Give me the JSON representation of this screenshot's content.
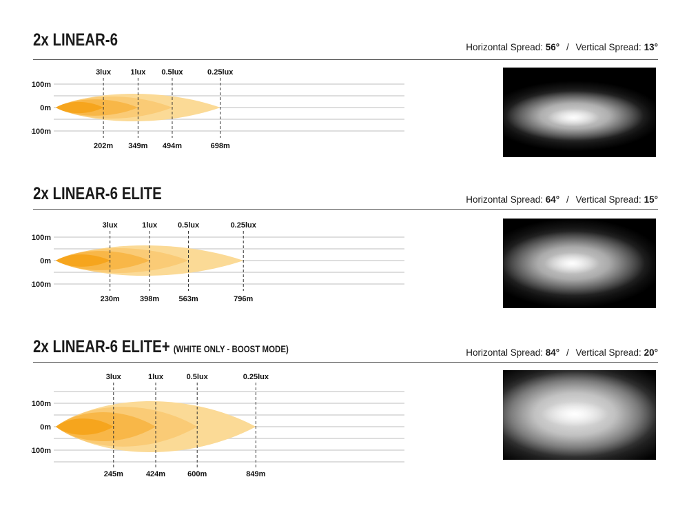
{
  "page": {
    "background": "#ffffff"
  },
  "colors": {
    "beam_layers_inner_to_outer": [
      "#F6A51D",
      "#F8B748",
      "#FACB76",
      "#FBDA96"
    ],
    "gridline": "#D9D9D9",
    "dashed_line": "#333333",
    "text": "#1a1a1a",
    "beam_photo_background": "#000000"
  },
  "chart_data": [
    {
      "type": "area",
      "title": "2x LINEAR-6",
      "title_suffix": "",
      "spread_h_label": "Horizontal Spread:",
      "spread_h_value": "56°",
      "spread_sep": "/",
      "spread_v_label": "Vertical Spread:",
      "spread_v_value": "13°",
      "y_tick_labels": [
        "100m",
        "0m",
        "-100m"
      ],
      "y_gridlines_m": [
        100,
        50,
        0,
        -50,
        -100
      ],
      "iso_lux_contours": [
        {
          "lux_label": "3lux",
          "distance_label": "202m",
          "distance_m": 202,
          "half_height_m": 24
        },
        {
          "lux_label": "1lux",
          "distance_label": "349m",
          "distance_m": 349,
          "half_height_m": 35
        },
        {
          "lux_label": "0.5lux",
          "distance_label": "494m",
          "distance_m": 494,
          "half_height_m": 47
        },
        {
          "lux_label": "0.25lux",
          "distance_label": "698m",
          "distance_m": 698,
          "half_height_m": 59
        }
      ]
    },
    {
      "type": "area",
      "title": "2x LINEAR-6 ELITE",
      "title_suffix": "",
      "spread_h_label": "Horizontal Spread:",
      "spread_h_value": "64°",
      "spread_sep": "/",
      "spread_v_label": "Vertical Spread:",
      "spread_v_value": "15°",
      "y_tick_labels": [
        "100m",
        "0m",
        "-100m"
      ],
      "y_gridlines_m": [
        100,
        50,
        0,
        -50,
        -100
      ],
      "iso_lux_contours": [
        {
          "lux_label": "3lux",
          "distance_label": "230m",
          "distance_m": 230,
          "half_height_m": 26
        },
        {
          "lux_label": "1lux",
          "distance_label": "398m",
          "distance_m": 398,
          "half_height_m": 41
        },
        {
          "lux_label": "0.5lux",
          "distance_label": "563m",
          "distance_m": 563,
          "half_height_m": 53
        },
        {
          "lux_label": "0.25lux",
          "distance_label": "796m",
          "distance_m": 796,
          "half_height_m": 65
        }
      ]
    },
    {
      "type": "area",
      "title": "2x LINEAR-6 ELITE+",
      "title_suffix": "(WHITE ONLY - BOOST MODE)",
      "spread_h_label": "Horizontal Spread:",
      "spread_h_value": "84°",
      "spread_sep": "/",
      "spread_v_label": "Vertical Spread:",
      "spread_v_value": "20°",
      "y_tick_labels": [
        "100m",
        "0m",
        "-100m"
      ],
      "y_gridlines_m": [
        150,
        100,
        50,
        0,
        -50,
        -100,
        -150
      ],
      "iso_lux_contours": [
        {
          "lux_label": "3lux",
          "distance_label": "245m",
          "distance_m": 245,
          "half_height_m": 35
        },
        {
          "lux_label": "1lux",
          "distance_label": "424m",
          "distance_m": 424,
          "half_height_m": 62
        },
        {
          "lux_label": "0.5lux",
          "distance_label": "600m",
          "distance_m": 600,
          "half_height_m": 85
        },
        {
          "lux_label": "0.25lux",
          "distance_label": "849m",
          "distance_m": 849,
          "half_height_m": 109
        }
      ]
    }
  ]
}
